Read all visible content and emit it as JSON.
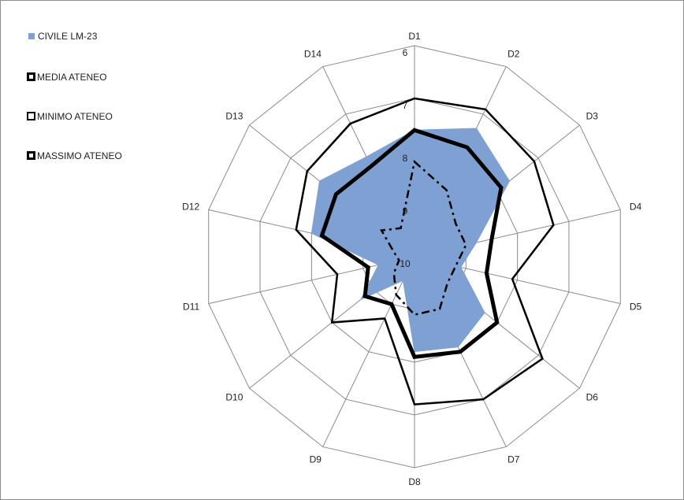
{
  "chart_data": {
    "type": "radar",
    "categories": [
      "D1",
      "D2",
      "D3",
      "D4",
      "D5",
      "D6",
      "D7",
      "D8",
      "D9",
      "D10",
      "D11",
      "D12",
      "D13",
      "D14"
    ],
    "axis_ticks": [
      "6",
      "7",
      "8",
      "9",
      "10"
    ],
    "axis_range": [
      10,
      6
    ],
    "axis_reversed": true,
    "series": [
      {
        "name": "CIVILE LM-23",
        "style": "area",
        "color": "#7ea0d2",
        "values": [
          7.6,
          7.3,
          7.7,
          8.8,
          9.1,
          8.3,
          8.1,
          8.2,
          9.5,
          8.7,
          9.3,
          8.0,
          7.7,
          7.9
        ]
      },
      {
        "name": "MEDIA ATENEO",
        "style": "thick",
        "color": "#000000",
        "values": [
          7.6,
          7.7,
          7.9,
          8.5,
          8.6,
          8.0,
          8.0,
          8.1,
          9.0,
          8.8,
          9.1,
          8.2,
          8.1,
          8.1
        ]
      },
      {
        "name": "MINIMO ATENEO",
        "style": "solid",
        "color": "#000000",
        "values": [
          7.0,
          6.9,
          7.1,
          7.3,
          8.1,
          6.9,
          7.0,
          7.2,
          8.7,
          8.0,
          8.5,
          7.7,
          7.4,
          7.2
        ]
      },
      {
        "name": "MASSIMO ATENEO",
        "style": "dashdot",
        "color": "#000000",
        "values": [
          8.2,
          8.6,
          9.0,
          9.0,
          9.2,
          9.2,
          8.9,
          8.9,
          9.2,
          9.5,
          9.7,
          9.6,
          9.2,
          9.4
        ]
      }
    ],
    "legend_position": "top-left",
    "grid": true
  },
  "legend": [
    {
      "label": "CIVILE LM-23"
    },
    {
      "label": "MEDIA ATENEO"
    },
    {
      "label": "MINIMO ATENEO"
    },
    {
      "label": "MASSIMO ATENEO"
    }
  ]
}
